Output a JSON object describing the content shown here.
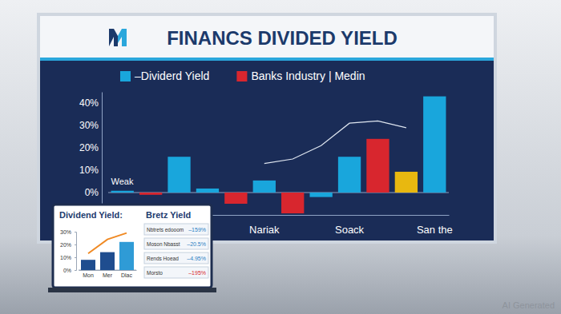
{
  "watermark": "AI Generated",
  "chart_data": [
    {
      "type": "bar",
      "title": "FINANCS DIVIDED YIELD",
      "categories": [
        null,
        null,
        null,
        null,
        null,
        "Nariak",
        null,
        null,
        "Soack",
        null,
        null,
        "San the"
      ],
      "series": [
        {
          "name": "–Dividerd Yield",
          "color": "#19a6dc",
          "values": [
            0.8,
            null,
            16,
            1.8,
            null,
            5.4,
            null,
            -2,
            16,
            null,
            null,
            43
          ]
        },
        {
          "name": "Banks Industry | Medin",
          "color": "#d8262e",
          "colors": [
            null,
            "#d8262e",
            null,
            null,
            "#d8262e",
            null,
            "#d8262e",
            null,
            null,
            "#d8262e",
            "#e8b810",
            null
          ],
          "values": [
            null,
            -1,
            null,
            null,
            -5,
            null,
            -9.3,
            null,
            null,
            24,
            9.3,
            null
          ]
        },
        {
          "type": "line",
          "color": "#dfe6f0",
          "values": [
            null,
            null,
            null,
            null,
            null,
            13,
            15,
            21,
            31,
            32,
            29,
            null
          ]
        }
      ],
      "ylim": [
        -10,
        45
      ],
      "yticks": [
        {
          "value": 0,
          "label": "0%"
        },
        {
          "value": 10,
          "label": "10%"
        },
        {
          "value": 20,
          "label": "20%"
        },
        {
          "value": 30,
          "label": "30%"
        },
        {
          "value": 40,
          "label": "40%"
        }
      ],
      "annotations": [
        "Weak"
      ],
      "legend": "top",
      "grid": false
    },
    {
      "type": "bar",
      "title": "Dividend Yield:",
      "categories": [
        "Mon",
        "Mer",
        "Dlac"
      ],
      "series": [
        {
          "type": "bar",
          "colors": [
            "#1f4d8f",
            "#1f4d8f",
            "#2f9bd6"
          ],
          "values": [
            8,
            14,
            22
          ]
        },
        {
          "type": "line",
          "color": "#f08a24",
          "values": [
            13,
            24,
            29
          ]
        }
      ],
      "ylim": [
        0,
        30
      ],
      "yticks": [
        {
          "value": 0,
          "label": "0%"
        },
        {
          "value": 10,
          "label": "10%"
        },
        {
          "value": 20,
          "label": "20%"
        },
        {
          "value": 30,
          "label": "30%"
        }
      ],
      "grid": false,
      "table": {
        "title": "Bretz Yield",
        "rows": [
          [
            "Nbtrets edooom",
            "–159%"
          ],
          [
            "Moson Nbasst",
            "–20.5%"
          ],
          [
            "Rends Hoead",
            "–4.95%"
          ],
          [
            "Morsto",
            "–195%"
          ]
        ]
      }
    }
  ]
}
